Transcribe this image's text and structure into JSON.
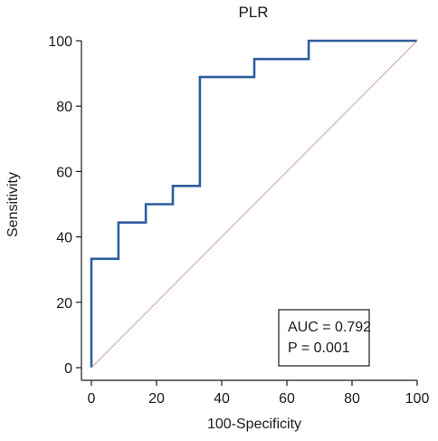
{
  "chart_data": {
    "type": "line",
    "title": "PLR",
    "xlabel": "100-Specificity",
    "ylabel": "Sensitivity",
    "xlim": [
      0,
      100
    ],
    "ylim": [
      0,
      100
    ],
    "x_ticks": [
      "0",
      "20",
      "40",
      "60",
      "80",
      "100"
    ],
    "y_ticks": [
      "0",
      "20",
      "40",
      "60",
      "80",
      "100"
    ],
    "grid": false,
    "series": [
      {
        "color": "#2e5e9e",
        "step": true,
        "points": [
          [
            0,
            0
          ],
          [
            0,
            33.3
          ],
          [
            8.3,
            33.3
          ],
          [
            8.3,
            44.4
          ],
          [
            16.7,
            44.4
          ],
          [
            16.7,
            50
          ],
          [
            25,
            50
          ],
          [
            25,
            55.6
          ],
          [
            33.3,
            55.6
          ],
          [
            33.3,
            88.9
          ],
          [
            50,
            88.9
          ],
          [
            50,
            94.4
          ],
          [
            66.7,
            94.4
          ],
          [
            66.7,
            100
          ],
          [
            100,
            100
          ]
        ]
      },
      {
        "color": "#c9a0a6",
        "reference": true,
        "points": [
          [
            0,
            0
          ],
          [
            100,
            100
          ]
        ]
      }
    ],
    "annotation": {
      "auc": "AUC = 0.792",
      "p": "P = 0.001"
    }
  }
}
